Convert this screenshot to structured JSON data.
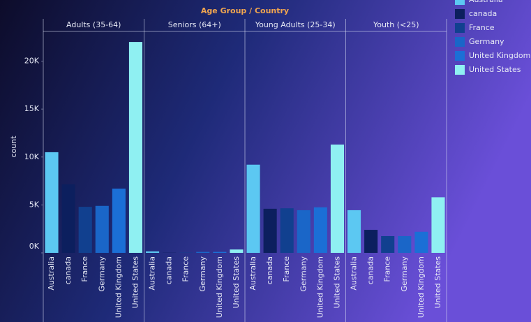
{
  "chart_data": {
    "type": "bar",
    "title": "Age Group / Country",
    "y_label": "count",
    "categories": [
      "Australia",
      "canada",
      "France",
      "Germany",
      "United Kingdom",
      "United States"
    ],
    "colors": [
      "#5cc8f2",
      "#0c1f5e",
      "#11408f",
      "#1a66c8",
      "#1b6fd6",
      "#8ff0f2"
    ],
    "facets": [
      {
        "name": "Adults (35-64)",
        "values": [
          10500,
          7150,
          4800,
          4900,
          6700,
          22000
        ]
      },
      {
        "name": "Seniors (64+)",
        "values": [
          150,
          20,
          30,
          100,
          100,
          350
        ]
      },
      {
        "name": "Young Adults (25-34)",
        "values": [
          9200,
          4600,
          4650,
          4450,
          4750,
          11300
        ]
      },
      {
        "name": "Youth (<25)",
        "values": [
          4450,
          2400,
          1750,
          1750,
          2200,
          5800
        ]
      }
    ],
    "ylim": [
      0,
      23100
    ],
    "yticks": [
      {
        "value": 0,
        "label": "0K"
      },
      {
        "value": 5000,
        "label": "5K"
      },
      {
        "value": 10000,
        "label": "10K"
      },
      {
        "value": 15000,
        "label": "15K"
      },
      {
        "value": 20000,
        "label": "20K"
      }
    ],
    "legend_position": "top-right"
  }
}
